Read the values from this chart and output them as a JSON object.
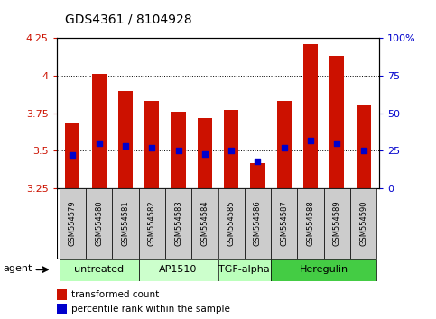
{
  "title": "GDS4361 / 8104928",
  "samples": [
    "GSM554579",
    "GSM554580",
    "GSM554581",
    "GSM554582",
    "GSM554583",
    "GSM554584",
    "GSM554585",
    "GSM554586",
    "GSM554587",
    "GSM554588",
    "GSM554589",
    "GSM554590"
  ],
  "bar_values": [
    3.68,
    4.01,
    3.9,
    3.83,
    3.76,
    3.72,
    3.77,
    3.42,
    3.83,
    4.21,
    4.13,
    3.81
  ],
  "dot_values": [
    3.47,
    3.55,
    3.53,
    3.52,
    3.5,
    3.48,
    3.5,
    3.43,
    3.52,
    3.57,
    3.55,
    3.5
  ],
  "bar_color": "#cc1100",
  "dot_color": "#0000cc",
  "ylim_left": [
    3.25,
    4.25
  ],
  "ylim_right": [
    0,
    100
  ],
  "yticks_left": [
    3.25,
    3.5,
    3.75,
    4.0,
    4.25
  ],
  "yticks_right": [
    0,
    25,
    50,
    75,
    100
  ],
  "ytick_labels_left": [
    "3.25",
    "3.5",
    "3.75",
    "4",
    "4.25"
  ],
  "ytick_labels_right": [
    "0",
    "25",
    "50",
    "75",
    "100%"
  ],
  "bar_bottom": 3.25,
  "groups": [
    {
      "label": "untreated",
      "start": 0,
      "end": 2
    },
    {
      "label": "AP1510",
      "start": 3,
      "end": 5
    },
    {
      "label": "TGF-alpha",
      "start": 6,
      "end": 7
    },
    {
      "label": "Heregulin",
      "start": 8,
      "end": 11
    }
  ],
  "group_colors": [
    "#bbffbb",
    "#ccffcc",
    "#bbffbb",
    "#44cc44"
  ],
  "agent_label": "agent",
  "legend_bar_label": "transformed count",
  "legend_dot_label": "percentile rank within the sample",
  "bar_width": 0.55,
  "left_tick_color": "#cc1100",
  "right_tick_color": "#0000cc",
  "background_label": "#cccccc",
  "title_fontsize": 10
}
